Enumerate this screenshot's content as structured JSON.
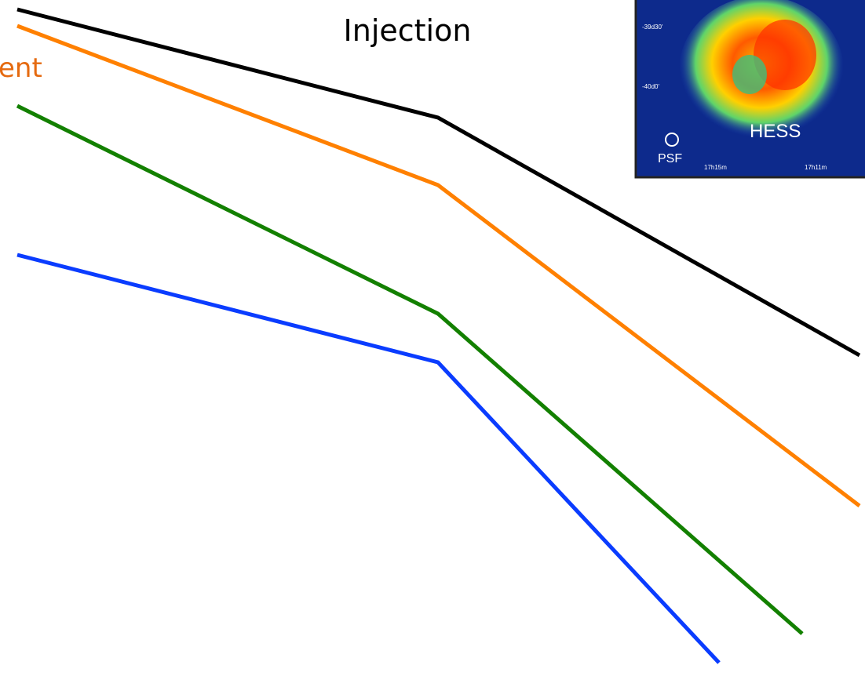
{
  "header": {
    "title": "Injection"
  },
  "labels": {
    "orange_curve": "ent"
  },
  "inset": {
    "dec_labels": [
      "-39d30'",
      "-40d0'"
    ],
    "instrument": "HESS",
    "psf": "PSF",
    "ra_labels": [
      "17h15m",
      "17h11m"
    ]
  }
}
